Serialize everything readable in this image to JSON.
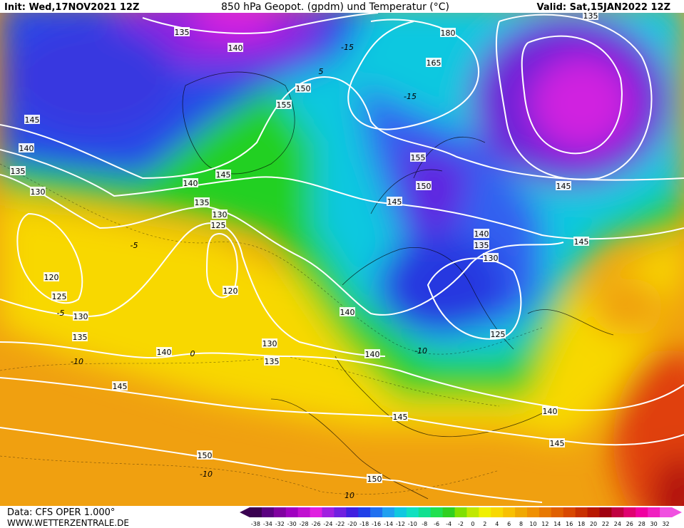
{
  "header": {
    "init": "Init: Wed,17NOV2021 12Z",
    "title": "850 hPa Geopot. (gpdm) und Temperatur (°C)",
    "valid": "Valid: Sat,15JAN2022 12Z"
  },
  "footer": {
    "source": "Data: CFS OPER 1.000°",
    "site": "WWW.WETTERZENTRALE.DE"
  },
  "legend": {
    "ticks": [
      -38,
      -34,
      -32,
      -30,
      -28,
      -26,
      -24,
      -22,
      -20,
      -18,
      -16,
      -14,
      -12,
      -10,
      -8,
      -6,
      -4,
      -2,
      0,
      2,
      4,
      6,
      8,
      10,
      12,
      14,
      16,
      18,
      20,
      22,
      24,
      26,
      28,
      30,
      32
    ]
  },
  "geopotential_labels": [
    "135",
    "140",
    "180",
    "165",
    "135",
    "150",
    "155",
    "145",
    "140",
    "135",
    "130",
    "145",
    "140",
    "155",
    "150",
    "145",
    "135",
    "145",
    "130",
    "125",
    "140",
    "135",
    "145",
    "130",
    "120",
    "120",
    "125",
    "130",
    "140",
    "135",
    "125",
    "130",
    "140",
    "140",
    "135",
    "145",
    "145",
    "140",
    "145",
    "150",
    "150"
  ],
  "temperature_labels": [
    "5",
    "-15",
    "-15",
    "-5",
    "-5",
    "-10",
    "0",
    "-10",
    "-10",
    "10"
  ]
}
